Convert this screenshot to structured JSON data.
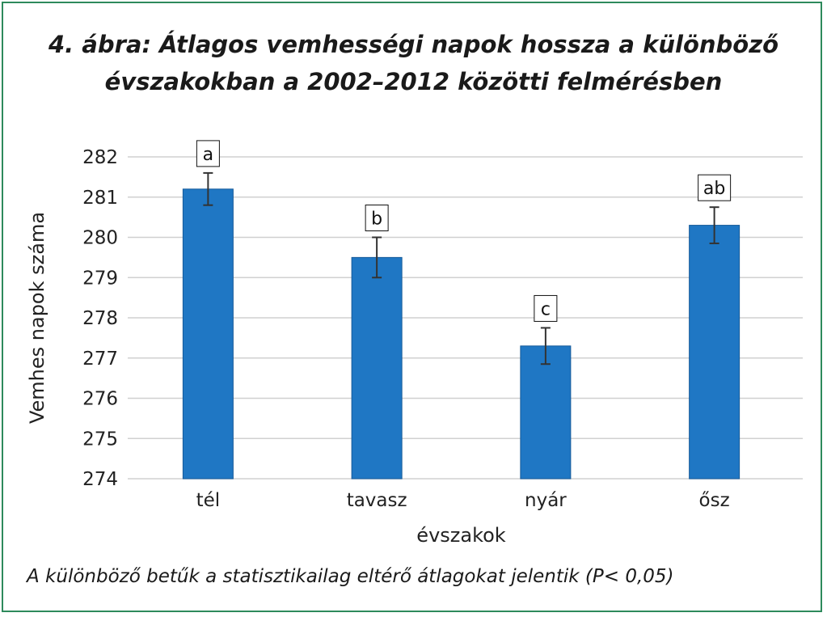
{
  "chart_data": {
    "type": "bar",
    "title_line1": "4. ábra: Átlagos vemhességi napok hossza a különböző",
    "title_line2": "évszakokban a 2002–2012 közötti felmérésben",
    "xlabel": "évszakok",
    "ylabel": "Vemhes napok száma",
    "ylim": [
      274,
      282
    ],
    "yticks": [
      274,
      275,
      276,
      277,
      278,
      279,
      280,
      281,
      282
    ],
    "categories": [
      "tél",
      "tavasz",
      "nyár",
      "ősz"
    ],
    "values": [
      281.2,
      279.5,
      277.3,
      280.3
    ],
    "error": [
      0.4,
      0.5,
      0.45,
      0.45
    ],
    "significance_letters": [
      "a",
      "b",
      "c",
      "ab"
    ],
    "grid": true,
    "bar_color": "#1f77c4",
    "footnote": "A különböző betűk a statisztikailag eltérő átlagokat jelentik (P< 0,05)"
  },
  "colors": {
    "frame": "#2e8a5c",
    "grid": "#d0d0d0",
    "bar_edge": "#155a99"
  }
}
